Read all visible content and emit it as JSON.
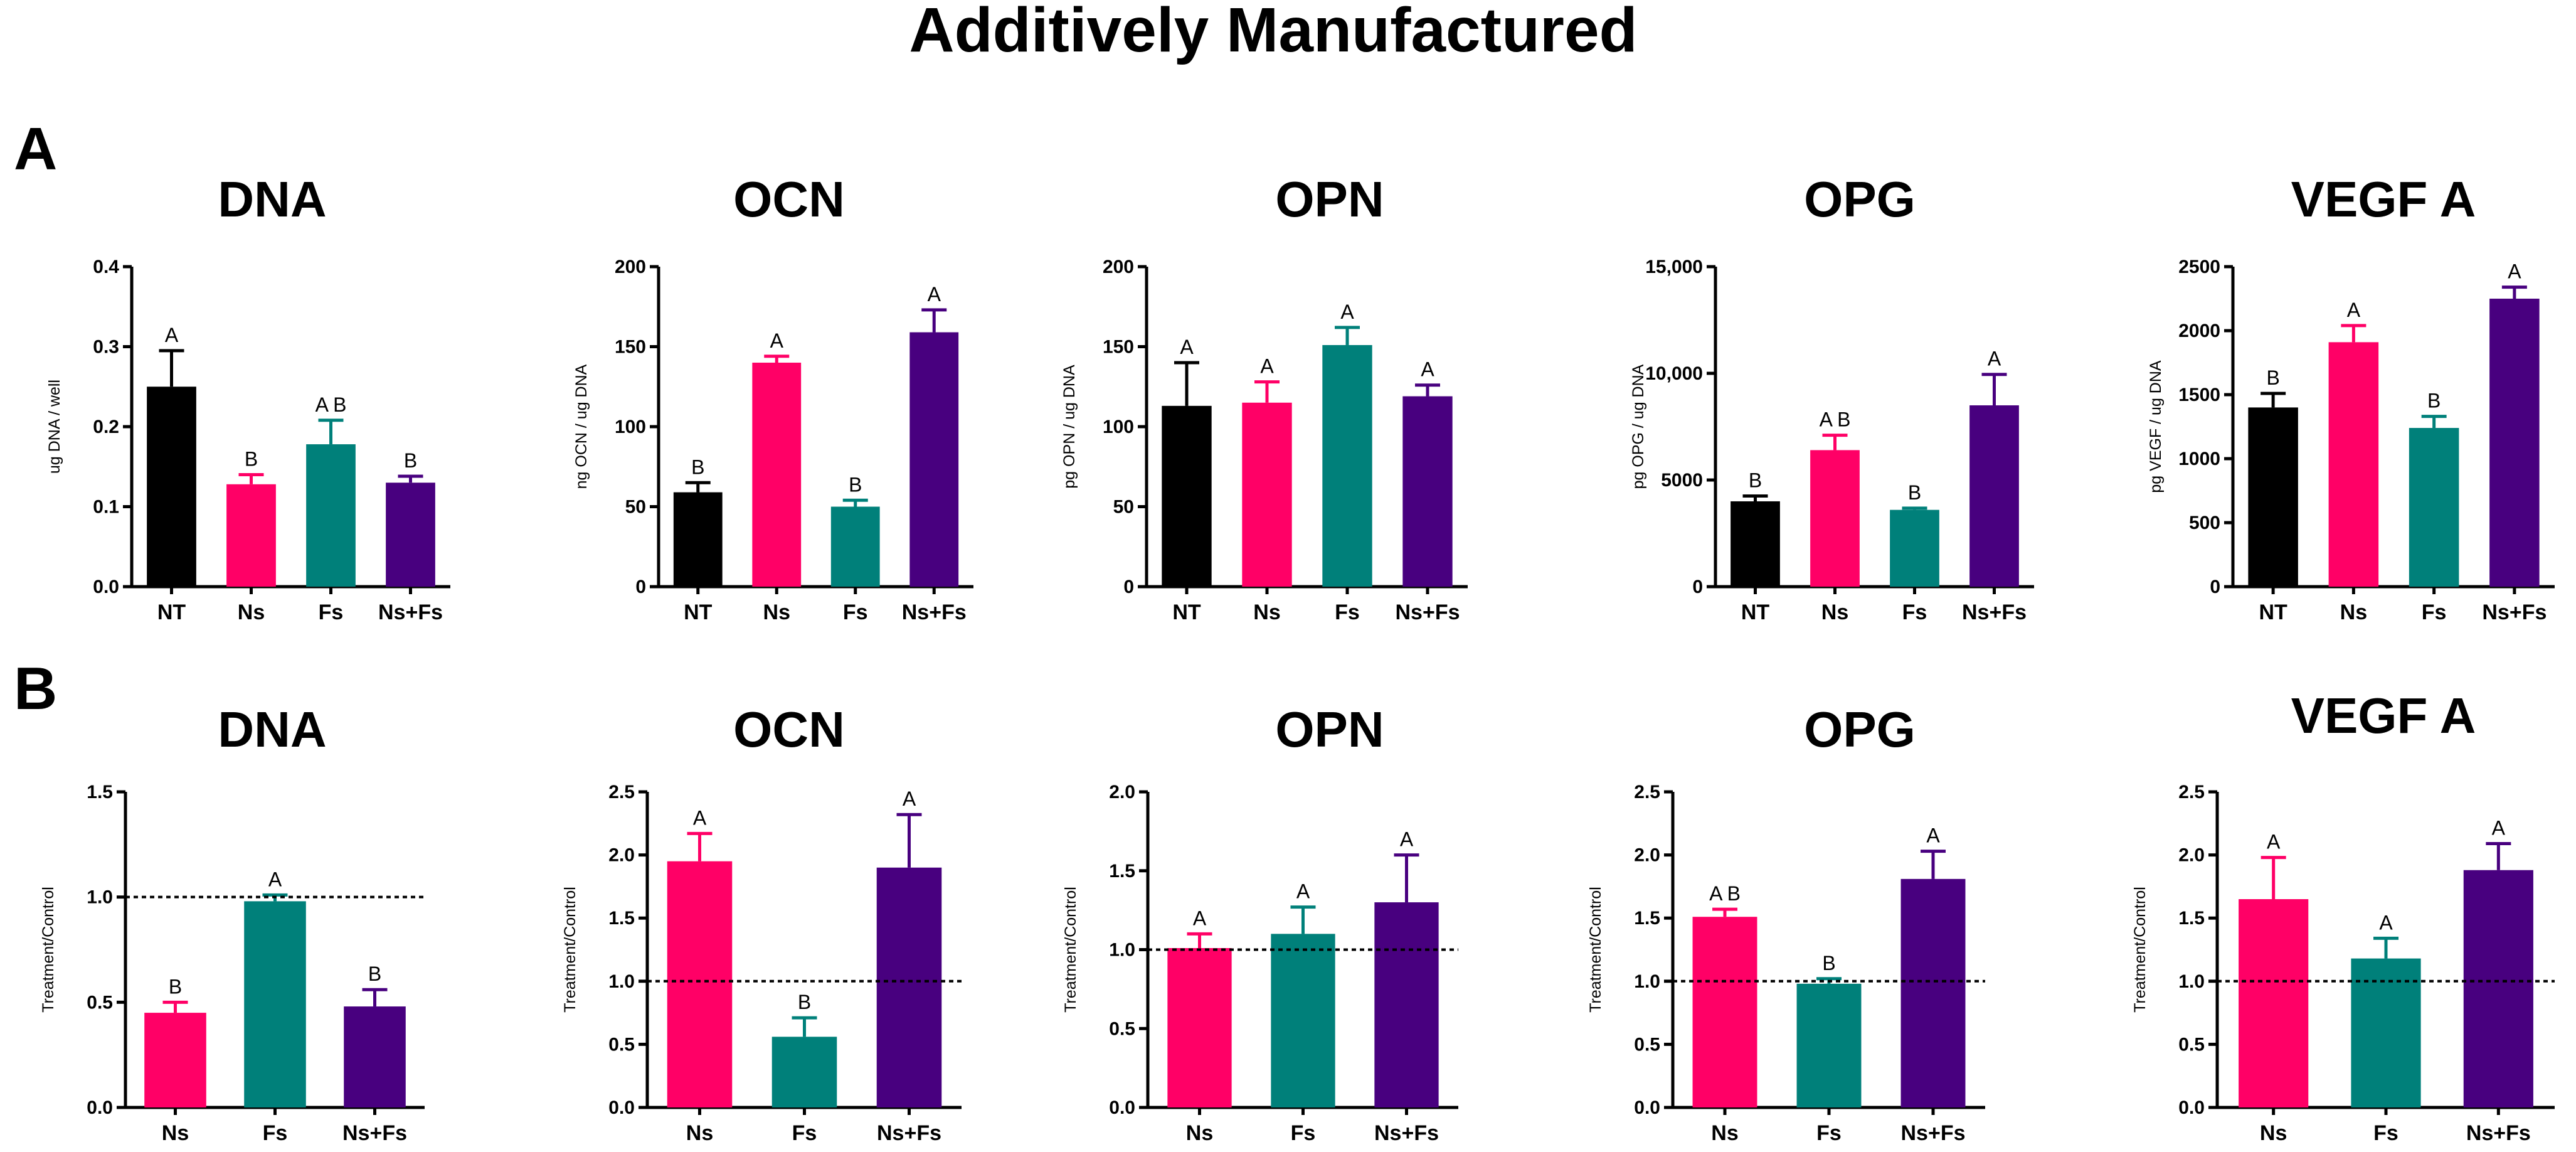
{
  "title": "Additively Manufactured",
  "colors": {
    "NT": "#000000",
    "Ns": "#FF0066",
    "Fs": "#00807A",
    "Ns+Fs": "#48007F"
  },
  "row_labels": [
    "A",
    "B"
  ],
  "chart_data": [
    {
      "type": "bar",
      "title": "DNA",
      "ylabel": "ug DNA / well",
      "categories": [
        "NT",
        "Ns",
        "Fs",
        "Ns+Fs"
      ],
      "values": [
        0.25,
        0.128,
        0.178,
        0.13
      ],
      "errors": [
        0.045,
        0.012,
        0.03,
        0.008
      ],
      "sig": [
        "A",
        "B",
        "A B",
        "B"
      ],
      "ylim": [
        0,
        0.4
      ],
      "ticks": [
        0.0,
        0.1,
        0.2,
        0.3,
        0.4
      ],
      "tick_labels": [
        "0.0",
        "0.1",
        "0.2",
        "0.3",
        "0.4"
      ]
    },
    {
      "type": "bar",
      "title": "OCN",
      "ylabel": "ng OCN / ug DNA",
      "categories": [
        "NT",
        "Ns",
        "Fs",
        "Ns+Fs"
      ],
      "values": [
        59,
        140,
        50,
        159
      ],
      "errors": [
        6,
        4,
        4,
        14
      ],
      "sig": [
        "B",
        "A",
        "B",
        "A"
      ],
      "ylim": [
        0,
        200
      ],
      "ticks": [
        0,
        50,
        100,
        150,
        200
      ],
      "tick_labels": [
        "0",
        "50",
        "100",
        "150",
        "200"
      ]
    },
    {
      "type": "bar",
      "title": "OPN",
      "ylabel": "pg OPN / ug DNA",
      "categories": [
        "NT",
        "Ns",
        "Fs",
        "Ns+Fs"
      ],
      "values": [
        113,
        115,
        151,
        119
      ],
      "errors": [
        27,
        13,
        11,
        7
      ],
      "sig": [
        "A",
        "A",
        "A",
        "A"
      ],
      "ylim": [
        0,
        200
      ],
      "ticks": [
        0,
        50,
        100,
        150,
        200
      ],
      "tick_labels": [
        "0",
        "50",
        "100",
        "150",
        "200"
      ]
    },
    {
      "type": "bar",
      "title": "OPG",
      "ylabel": "pg OPG / ug DNA",
      "categories": [
        "NT",
        "Ns",
        "Fs",
        "Ns+Fs"
      ],
      "values": [
        4000,
        6400,
        3600,
        8500
      ],
      "errors": [
        250,
        700,
        80,
        1450
      ],
      "sig": [
        "B",
        "A B",
        "B",
        "A"
      ],
      "ylim": [
        0,
        15000
      ],
      "ticks": [
        0,
        5000,
        10000,
        15000
      ],
      "tick_labels": [
        "0",
        "5000",
        "10,000",
        "15,000"
      ]
    },
    {
      "type": "bar",
      "title": "VEGF A",
      "ylabel": "pg VEGF / ug DNA",
      "categories": [
        "NT",
        "Ns",
        "Fs",
        "Ns+Fs"
      ],
      "values": [
        1400,
        1910,
        1240,
        2250
      ],
      "errors": [
        110,
        130,
        90,
        90
      ],
      "sig": [
        "B",
        "A",
        "B",
        "A"
      ],
      "ylim": [
        0,
        2500
      ],
      "ticks": [
        0,
        500,
        1000,
        1500,
        2000,
        2500
      ],
      "tick_labels": [
        "0",
        "500",
        "1000",
        "1500",
        "2000",
        "2500"
      ]
    },
    {
      "type": "bar",
      "title": "DNA",
      "ylabel": "Treatment/Control",
      "categories": [
        "Ns",
        "Fs",
        "Ns+Fs"
      ],
      "values": [
        0.45,
        0.98,
        0.48
      ],
      "errors": [
        0.05,
        0.03,
        0.08
      ],
      "sig": [
        "B",
        "A",
        "B"
      ],
      "ylim": [
        0,
        1.5
      ],
      "ticks": [
        0.0,
        0.5,
        1.0,
        1.5
      ],
      "tick_labels": [
        "0.0",
        "0.5",
        "1.0",
        "1.5"
      ],
      "reference_line": 1.0
    },
    {
      "type": "bar",
      "title": "OCN",
      "ylabel": "Treatment/Control",
      "categories": [
        "Ns",
        "Fs",
        "Ns+Fs"
      ],
      "values": [
        1.95,
        0.56,
        1.9
      ],
      "errors": [
        0.22,
        0.15,
        0.42
      ],
      "sig": [
        "A",
        "B",
        "A"
      ],
      "ylim": [
        0,
        2.5
      ],
      "ticks": [
        0.0,
        0.5,
        1.0,
        1.5,
        2.0,
        2.5
      ],
      "tick_labels": [
        "0.0",
        "0.5",
        "1.0",
        "1.5",
        "2.0",
        "2.5"
      ],
      "reference_line": 1.0
    },
    {
      "type": "bar",
      "title": "OPN",
      "ylabel": "Treatment/Control",
      "categories": [
        "Ns",
        "Fs",
        "Ns+Fs"
      ],
      "values": [
        1.01,
        1.1,
        1.3
      ],
      "errors": [
        0.09,
        0.17,
        0.3
      ],
      "sig": [
        "A",
        "A",
        "A"
      ],
      "ylim": [
        0,
        2.0
      ],
      "ticks": [
        0.0,
        0.5,
        1.0,
        1.5,
        2.0
      ],
      "tick_labels": [
        "0.0",
        "0.5",
        "1.0",
        "1.5",
        "2.0"
      ],
      "reference_line": 1.0
    },
    {
      "type": "bar",
      "title": "OPG",
      "ylabel": "Treatment/Control",
      "categories": [
        "Ns",
        "Fs",
        "Ns+Fs"
      ],
      "values": [
        1.51,
        0.98,
        1.81
      ],
      "errors": [
        0.06,
        0.04,
        0.22
      ],
      "sig": [
        "A B",
        "B",
        "A"
      ],
      "ylim": [
        0,
        2.5
      ],
      "ticks": [
        0.0,
        0.5,
        1.0,
        1.5,
        2.0,
        2.5
      ],
      "tick_labels": [
        "0.0",
        "0.5",
        "1.0",
        "1.5",
        "2.0",
        "2.5"
      ],
      "reference_line": 1.0
    },
    {
      "type": "bar",
      "title": "VEGF A",
      "ylabel": "Treatment/Control",
      "categories": [
        "Ns",
        "Fs",
        "Ns+Fs"
      ],
      "values": [
        1.65,
        1.18,
        1.88
      ],
      "errors": [
        0.33,
        0.16,
        0.21
      ],
      "sig": [
        "A",
        "A",
        "A"
      ],
      "ylim": [
        0,
        2.5
      ],
      "ticks": [
        0.0,
        0.5,
        1.0,
        1.5,
        2.0,
        2.5
      ],
      "tick_labels": [
        "0.0",
        "0.5",
        "1.0",
        "1.5",
        "2.0",
        "2.5"
      ],
      "reference_line": 1.0
    }
  ]
}
